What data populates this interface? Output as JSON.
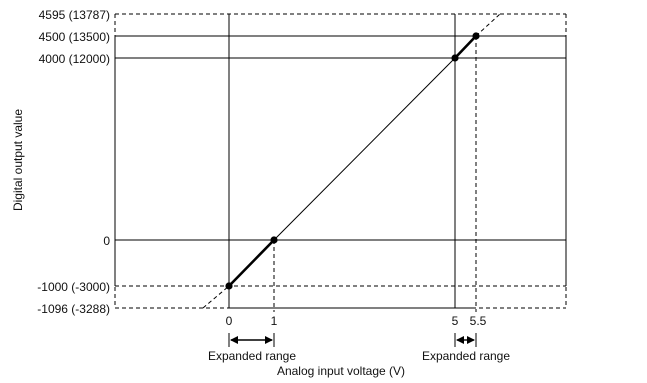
{
  "diagram": {
    "x_axis_label": "Analog input voltage (V)",
    "y_axis_label": "Digital output value",
    "x_ticks": [
      {
        "value": 0,
        "label": "0"
      },
      {
        "value": 1,
        "label": "1"
      },
      {
        "value": 5,
        "label": "5"
      },
      {
        "value": 5.5,
        "label": "5.5"
      }
    ],
    "y_ticks": [
      {
        "value": 4595,
        "label": "4595 (13787)"
      },
      {
        "value": 4500,
        "label": "4500 (13500)"
      },
      {
        "value": 4000,
        "label": "4000 (12000)"
      },
      {
        "value": 0,
        "label": "0"
      },
      {
        "value": -1000,
        "label": "-1000 (-3000)"
      },
      {
        "value": -1096,
        "label": "-1096 (-3288)"
      }
    ],
    "expanded_ranges": [
      {
        "label": "Expanded range",
        "from": 0,
        "to": 1
      },
      {
        "label": "Expanded range",
        "from": 5,
        "to": 5.5
      }
    ],
    "points": [
      {
        "x": 0,
        "y": -1000
      },
      {
        "x": 1,
        "y": 0
      },
      {
        "x": 5,
        "y": 4000
      },
      {
        "x": 5.5,
        "y": 4500
      }
    ]
  }
}
